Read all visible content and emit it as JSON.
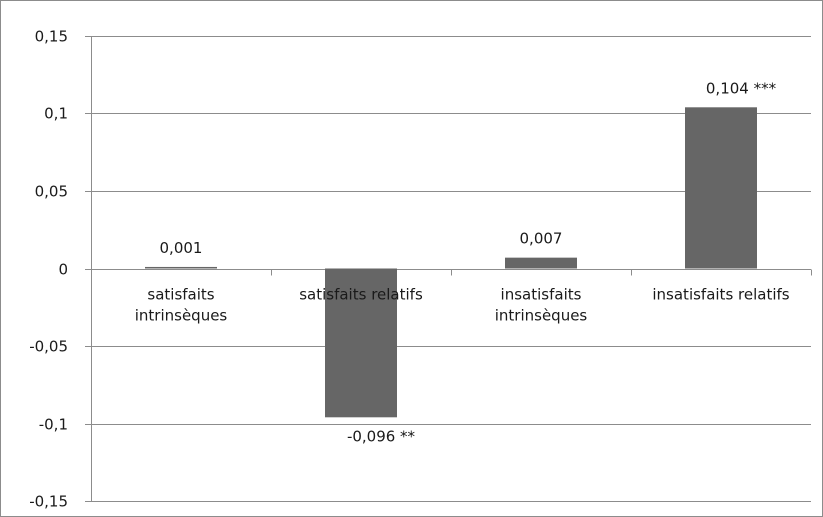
{
  "chart_data": {
    "type": "bar",
    "categories": [
      [
        "satisfaits",
        "intrinsèques"
      ],
      [
        "satisfaits relatifs"
      ],
      [
        "insatisfaits",
        "intrinsèques"
      ],
      [
        "insatisfaits relatifs"
      ]
    ],
    "values": [
      0.001,
      -0.096,
      0.007,
      0.104
    ],
    "data_labels": [
      "0,001",
      "-0,096   **",
      "0,007",
      "0,104   ***"
    ],
    "y_ticks": [
      0.15,
      0.1,
      0.05,
      0,
      -0.05,
      -0.1,
      -0.15
    ],
    "y_tick_labels": [
      "0,15",
      "0,1",
      "0,05",
      "0",
      "-0,05",
      "-0,1",
      "-0,15"
    ],
    "ylim": [
      -0.15,
      0.15
    ],
    "grid": true,
    "legend": "none",
    "bar_color": "#666666",
    "grid_color": "#8c8c8c"
  }
}
